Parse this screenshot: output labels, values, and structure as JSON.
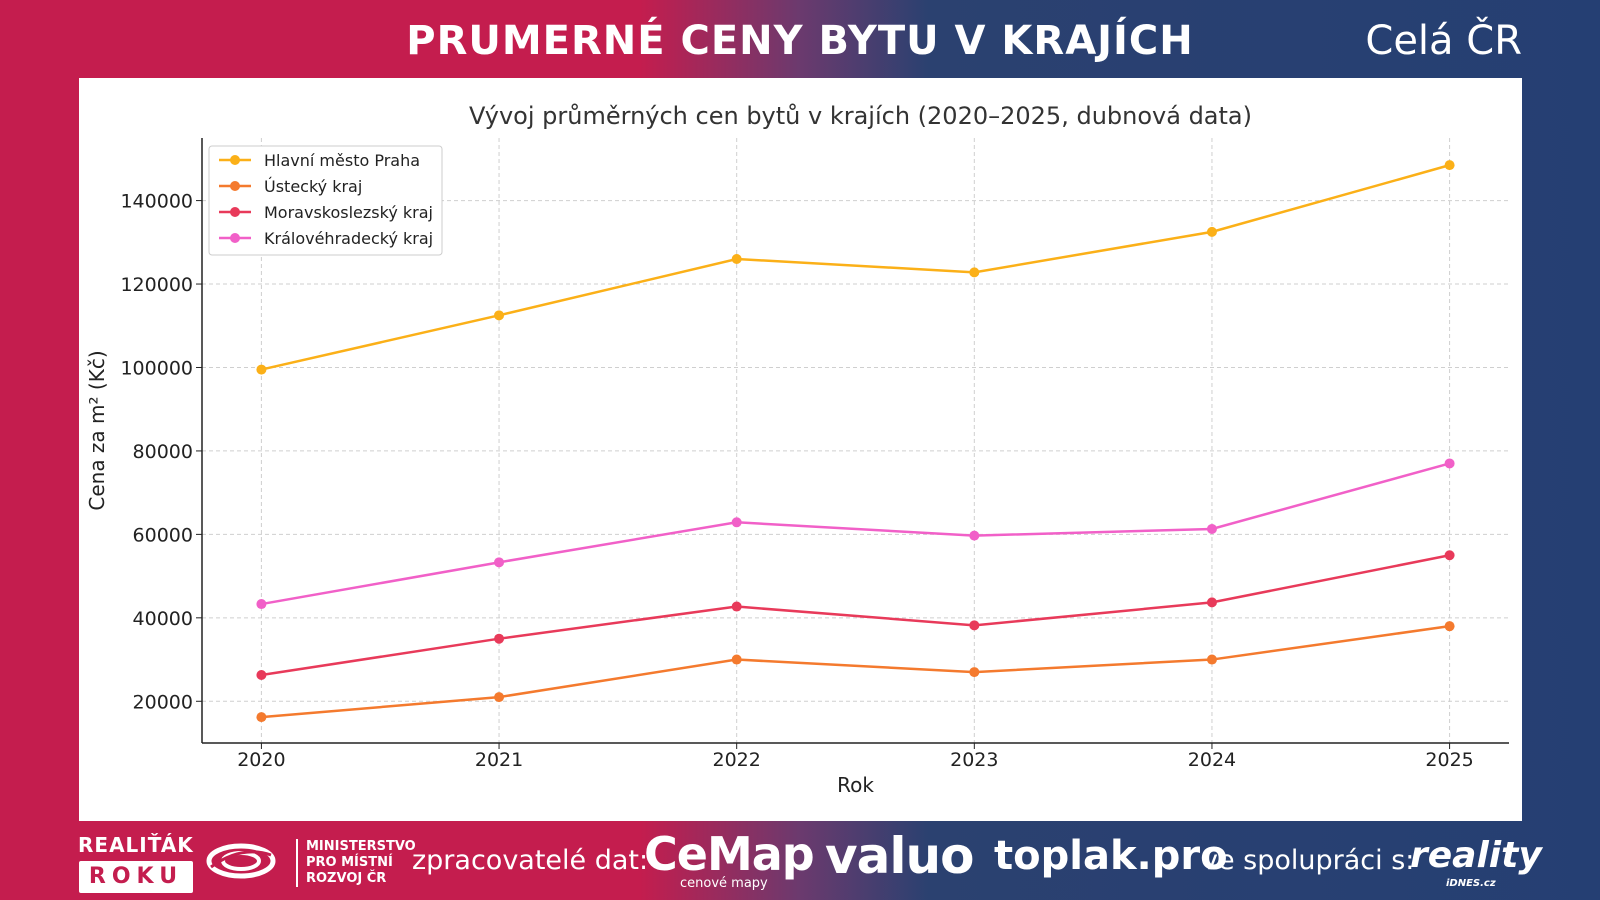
{
  "header": {
    "title": "PRUMERNÉ CENY BYTU V KRAJÍCH",
    "region": "Celá ČR"
  },
  "colors": {
    "praha": "#fbb018",
    "ustecky": "#f47a2e",
    "moravskoslezsky": "#e83a5a",
    "kralovehradecky": "#f160c8"
  },
  "chart_data": {
    "type": "line",
    "title": "Vývoj průměrných cen bytů v krajích (2020–2025, dubnová data)",
    "xlabel": "Rok",
    "ylabel": "Cena za m² (Kč)",
    "x": [
      2020,
      2021,
      2022,
      2023,
      2024,
      2025
    ],
    "xticks": [
      "2020",
      "2021",
      "2022",
      "2023",
      "2024",
      "2025"
    ],
    "yticks": [
      "20000",
      "40000",
      "60000",
      "80000",
      "100000",
      "120000",
      "140000"
    ],
    "yticks_values": [
      20000,
      40000,
      60000,
      80000,
      100000,
      120000,
      140000
    ],
    "ylim": [
      10000,
      155000
    ],
    "xlim": [
      2019.75,
      2025.25
    ],
    "grid": true,
    "legend_position": "top-left",
    "series": [
      {
        "name": "Hlavní město Praha",
        "color": "#fbb018",
        "values": [
          99500,
          112500,
          126000,
          122800,
          132500,
          148500
        ]
      },
      {
        "name": "Ústecký kraj",
        "color": "#f47a2e",
        "values": [
          16200,
          21000,
          30000,
          27000,
          30000,
          38000
        ]
      },
      {
        "name": "Moravskoslezský kraj",
        "color": "#e83a5a",
        "values": [
          26300,
          35000,
          42700,
          38200,
          43700,
          55000
        ]
      },
      {
        "name": "Královéhradecký kraj",
        "color": "#f160c8",
        "values": [
          43300,
          53300,
          62900,
          59700,
          61300,
          77000
        ]
      }
    ]
  },
  "footer": {
    "realitak": "REALIŤÁK",
    "roku": "ROKU",
    "ministry": [
      "MINISTERSTVO",
      "PRO MÍSTNÍ",
      "ROZVOJ ČR"
    ],
    "processors_label": "zpracovatelé dat:",
    "cemap": "CeMap",
    "cemap_sub": "cenové mapy",
    "valuo": "valuo",
    "toplak": "toplak.pro",
    "collab_label": "ve spolupráci s:",
    "reality": "reality",
    "idnes": "iDNES.cz"
  }
}
